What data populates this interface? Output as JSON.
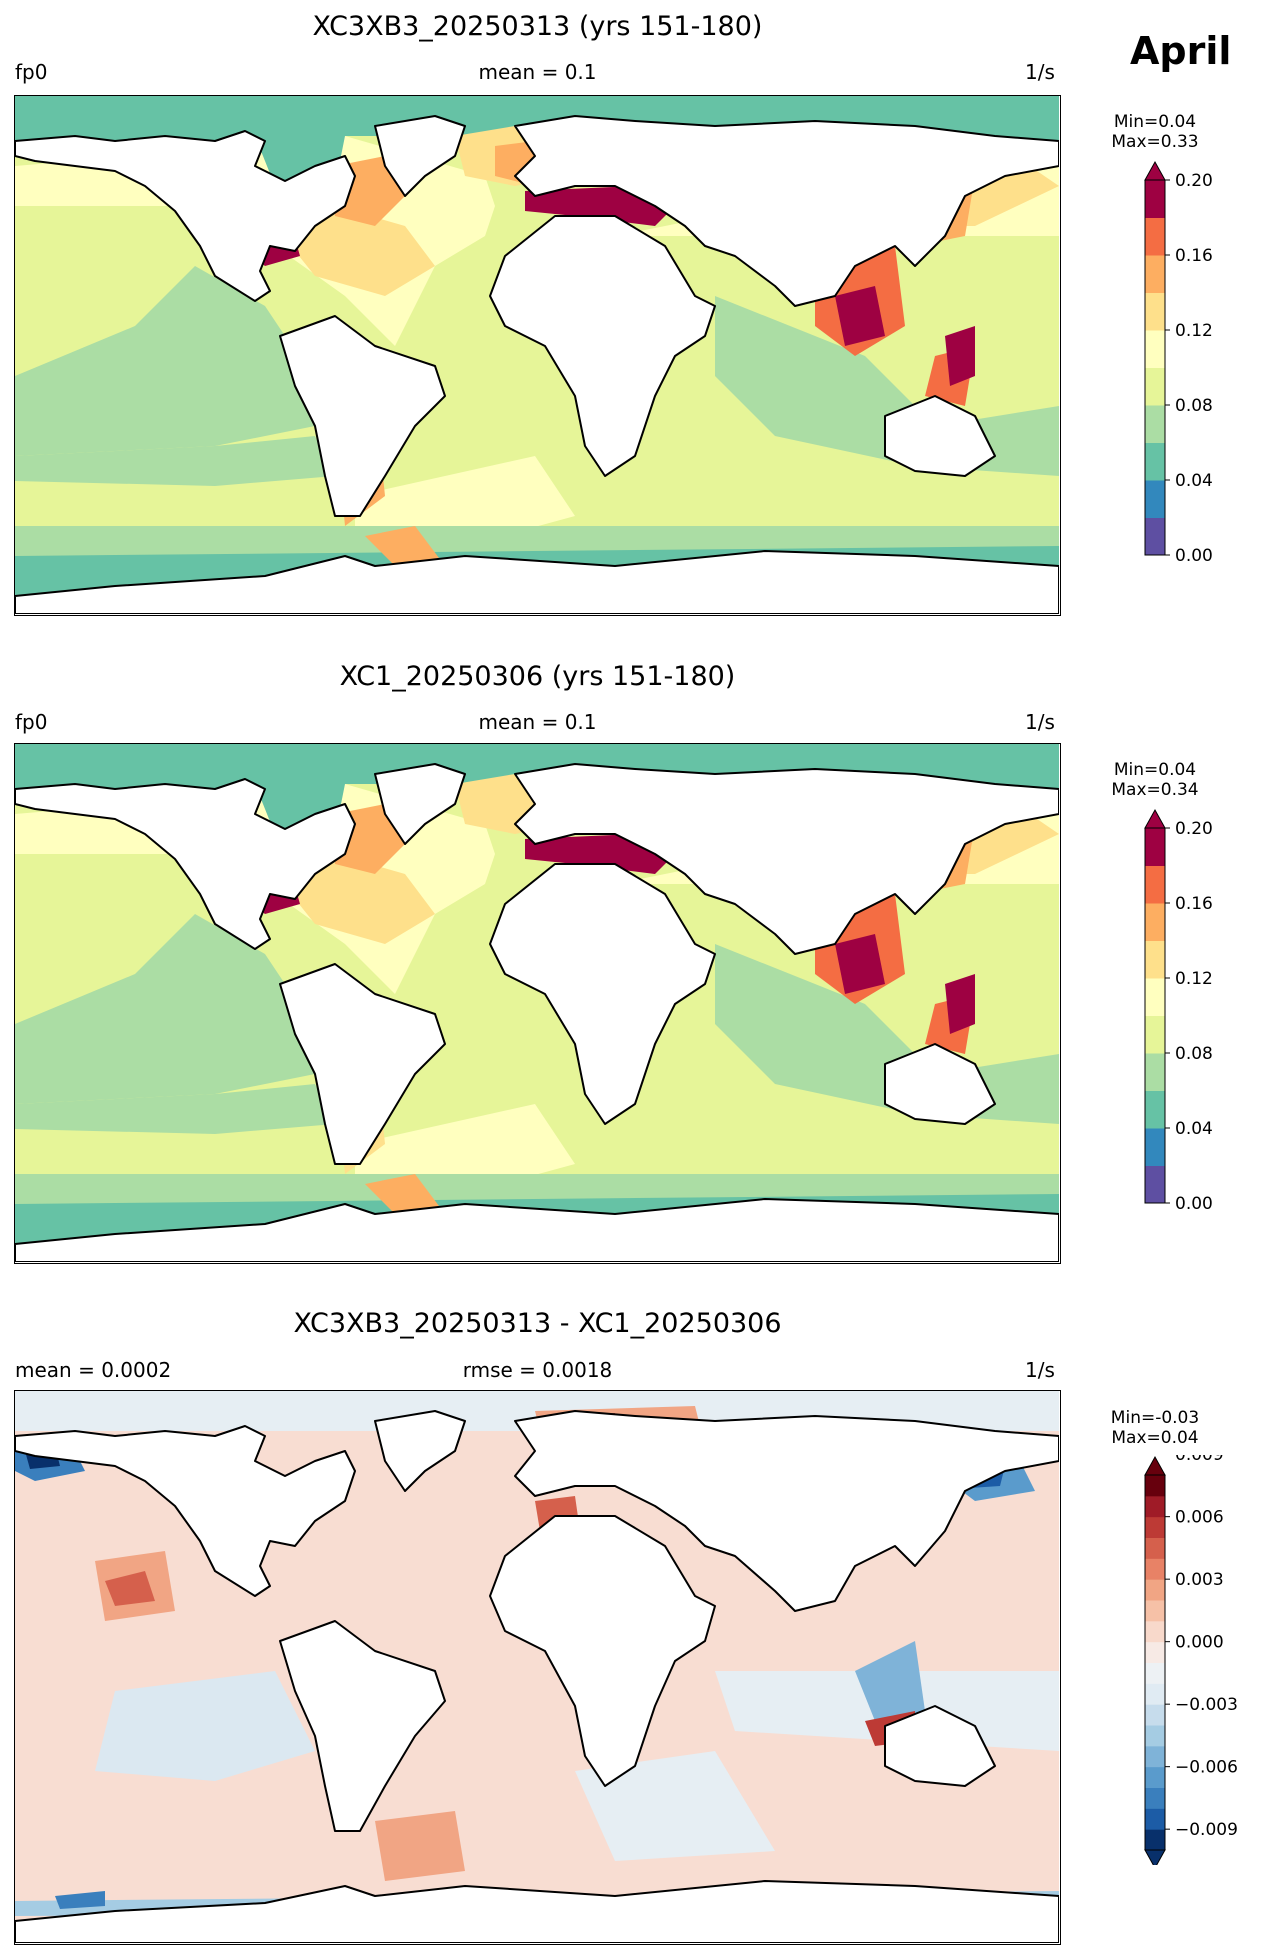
{
  "month": "April",
  "panels": [
    {
      "title": "XC3XB3_20250313 (yrs 151-180)",
      "left_label": "fp0",
      "center_label": "mean = 0.1",
      "right_label": "1/s",
      "minmax": "Min=0.04\nMax=0.33",
      "colorbar": {
        "ticks": [
          "0.00",
          "0.04",
          "0.08",
          "0.12",
          "0.16",
          "0.20"
        ],
        "colors": [
          "#5e4fa2",
          "#3288bd",
          "#66c2a5",
          "#abdda4",
          "#e6f598",
          "#ffffbf",
          "#fee08b",
          "#fdae61",
          "#f46d43",
          "#9e0142"
        ]
      }
    },
    {
      "title": "XC1_20250306 (yrs 151-180)",
      "left_label": "fp0",
      "center_label": "mean = 0.1",
      "right_label": "1/s",
      "minmax": "Min=0.04\nMax=0.34",
      "colorbar": {
        "ticks": [
          "0.00",
          "0.04",
          "0.08",
          "0.12",
          "0.16",
          "0.20"
        ],
        "colors": [
          "#5e4fa2",
          "#3288bd",
          "#66c2a5",
          "#abdda4",
          "#e6f598",
          "#ffffbf",
          "#fee08b",
          "#fdae61",
          "#f46d43",
          "#9e0142"
        ]
      }
    },
    {
      "title": "XC3XB3_20250313 - XC1_20250306",
      "left_label": "mean = 0.0002",
      "center_label": "rmse = 0.0018",
      "right_label": "1/s",
      "minmax": "Min=-0.03\nMax=0.04",
      "colorbar": {
        "ticks": [
          "−0.009",
          "−0.006",
          "−0.003",
          "0.000",
          "0.003",
          "0.006",
          "0.009"
        ],
        "colors": [
          "#08306b",
          "#1c5ca6",
          "#3a7fbd",
          "#5a9bcc",
          "#7fb3d8",
          "#a5cce3",
          "#c6dcec",
          "#e0ebf3",
          "#edf1f4",
          "#f7eae5",
          "#f8d9cb",
          "#f6c1a7",
          "#f1a584",
          "#e88266",
          "#d5604c",
          "#bd3a35",
          "#9f1b27",
          "#67000d"
        ]
      }
    }
  ]
}
